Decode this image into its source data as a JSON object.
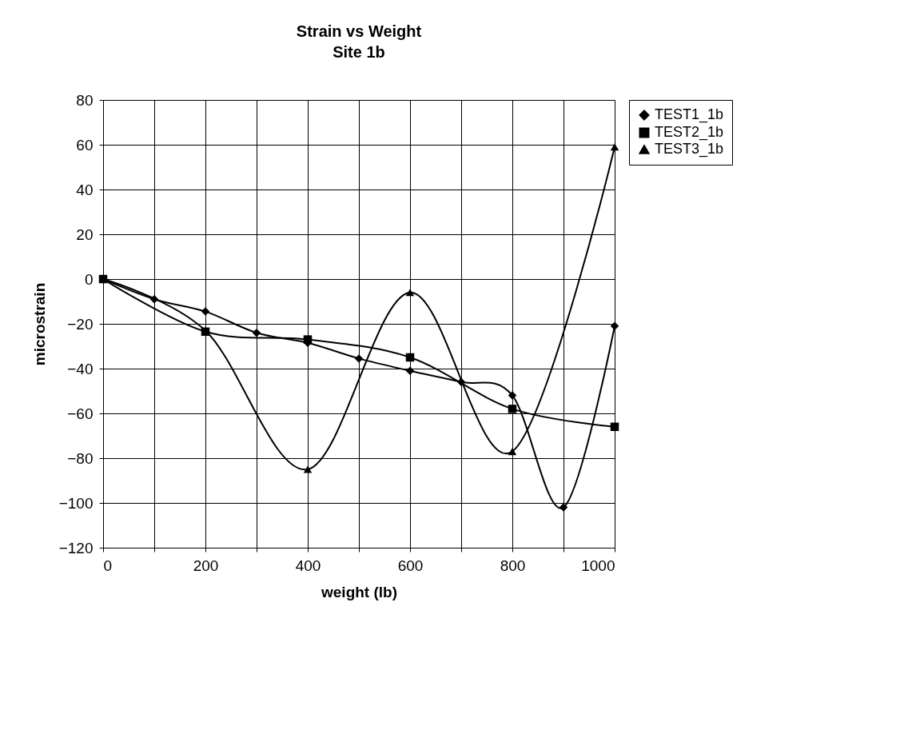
{
  "chart_data": {
    "type": "line",
    "title": "Strain vs Weight",
    "subtitle": "Site 1b",
    "xlabel": "weight (lb)",
    "ylabel": "microstrain",
    "xlim": [
      0,
      1000
    ],
    "ylim": [
      -120,
      80
    ],
    "xticks": [
      0,
      {
        "value": 100,
        "label": null
      },
      200,
      {
        "value": 300,
        "label": null
      },
      400,
      {
        "value": 500,
        "label": null
      },
      600,
      {
        "value": 700,
        "label": null
      },
      800,
      {
        "value": 900,
        "label": null
      },
      1000
    ],
    "yticks": [
      -120,
      -100,
      -80,
      -60,
      -40,
      -20,
      0,
      20,
      40,
      60,
      80
    ],
    "grid": true,
    "legend": "right",
    "line_style": "solid",
    "series": [
      {
        "name": "TEST1_1b",
        "color": "#000000",
        "marker": "diamond",
        "x": [
          0,
          100,
          200,
          300,
          400,
          500,
          600,
          700,
          800,
          900,
          1000
        ],
        "values": [
          0,
          -9,
          -14.5,
          -24,
          -28.5,
          -35.5,
          -41,
          -46,
          -52,
          -102,
          -21
        ]
      },
      {
        "name": "TEST2_1b",
        "color": "#000000",
        "marker": "square",
        "x": [
          0,
          200,
          400,
          600,
          800,
          1000
        ],
        "values": [
          0,
          -23.5,
          -27,
          -35,
          -58,
          -66
        ]
      },
      {
        "name": "TEST3_1b",
        "color": "#000000",
        "marker": "triangle",
        "x": [
          0,
          200,
          400,
          600,
          800,
          1000
        ],
        "values": [
          0,
          -23,
          -85,
          -6,
          -77,
          59
        ]
      }
    ]
  }
}
